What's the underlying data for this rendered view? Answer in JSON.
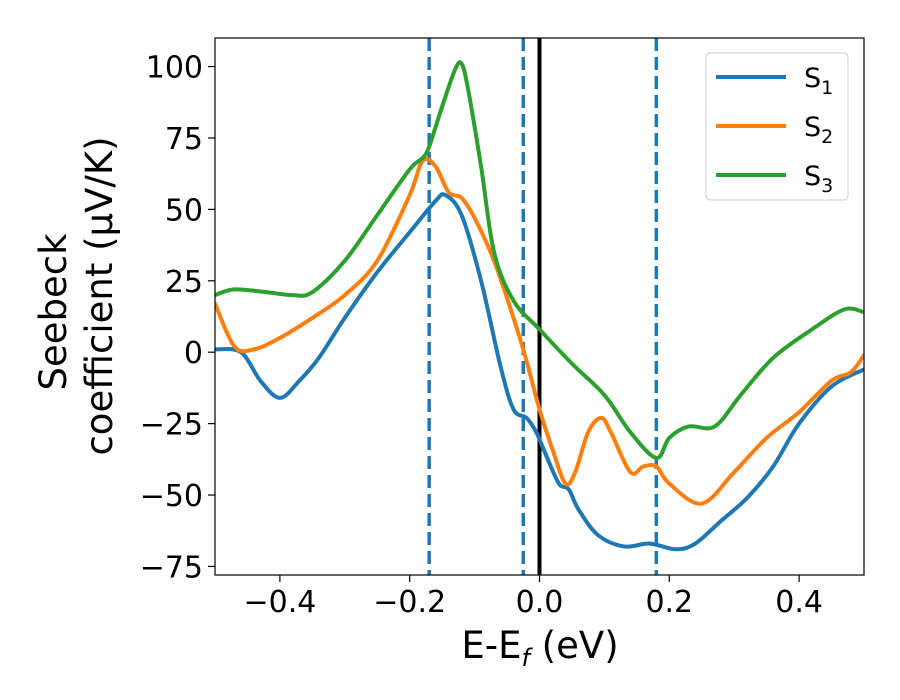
{
  "chart_data": {
    "type": "line",
    "title": "",
    "xlabel": "E-E_f (eV)",
    "ylabel": "Seebeck coefficient (μV/K)",
    "xlabel_parts": {
      "main": "E-E",
      "sub": "f",
      "tail": " (eV)"
    },
    "ylabel_lines": [
      "Seebeck",
      "coefficient  (μV/K)"
    ],
    "xlim": [
      -0.5,
      0.5
    ],
    "ylim": [
      -78,
      110
    ],
    "xticks": [
      -0.4,
      -0.2,
      0.0,
      0.2,
      0.4
    ],
    "xtick_labels": [
      "−0.4",
      "−0.2",
      "0.0",
      "0.2",
      "0.4"
    ],
    "yticks": [
      -75,
      -50,
      -25,
      0,
      25,
      50,
      75,
      100
    ],
    "ytick_labels": [
      "−75",
      "−50",
      "−25",
      "0",
      "25",
      "50",
      "75",
      "100"
    ],
    "grid": false,
    "legend_position": "top-right",
    "vlines": [
      {
        "x": -0.17,
        "style": "dashed",
        "color": "#1f77b4"
      },
      {
        "x": -0.025,
        "style": "dashed",
        "color": "#1f77b4"
      },
      {
        "x": 0.0,
        "style": "solid",
        "color": "#000000"
      },
      {
        "x": 0.18,
        "style": "dashed",
        "color": "#1f77b4"
      }
    ],
    "series": [
      {
        "name": "S1",
        "label_main": "S",
        "label_sub": "1",
        "color": "#1f77b4",
        "points": [
          [
            -0.5,
            1
          ],
          [
            -0.46,
            0
          ],
          [
            -0.43,
            -10
          ],
          [
            -0.4,
            -16
          ],
          [
            -0.37,
            -10
          ],
          [
            -0.34,
            -2
          ],
          [
            -0.3,
            12
          ],
          [
            -0.25,
            28
          ],
          [
            -0.2,
            42
          ],
          [
            -0.16,
            53
          ],
          [
            -0.145,
            55
          ],
          [
            -0.12,
            48
          ],
          [
            -0.09,
            25
          ],
          [
            -0.06,
            -5
          ],
          [
            -0.04,
            -20
          ],
          [
            -0.02,
            -23
          ],
          [
            -0.005,
            -28
          ],
          [
            0.01,
            -36
          ],
          [
            0.03,
            -46
          ],
          [
            0.045,
            -48
          ],
          [
            0.06,
            -55
          ],
          [
            0.09,
            -64
          ],
          [
            0.13,
            -68
          ],
          [
            0.17,
            -67
          ],
          [
            0.21,
            -69
          ],
          [
            0.24,
            -67
          ],
          [
            0.28,
            -59
          ],
          [
            0.32,
            -51
          ],
          [
            0.36,
            -40
          ],
          [
            0.4,
            -25
          ],
          [
            0.45,
            -12
          ],
          [
            0.5,
            -6
          ]
        ]
      },
      {
        "name": "S2",
        "label_main": "S",
        "label_sub": "2",
        "color": "#ff7f0e",
        "points": [
          [
            -0.5,
            17
          ],
          [
            -0.47,
            2
          ],
          [
            -0.44,
            1
          ],
          [
            -0.4,
            5
          ],
          [
            -0.35,
            12
          ],
          [
            -0.3,
            20
          ],
          [
            -0.25,
            32
          ],
          [
            -0.2,
            55
          ],
          [
            -0.18,
            67
          ],
          [
            -0.16,
            65
          ],
          [
            -0.14,
            56
          ],
          [
            -0.12,
            54
          ],
          [
            -0.1,
            47
          ],
          [
            -0.07,
            32
          ],
          [
            -0.04,
            12
          ],
          [
            -0.02,
            -3
          ],
          [
            0.0,
            -20
          ],
          [
            0.02,
            -34
          ],
          [
            0.04,
            -46
          ],
          [
            0.055,
            -42
          ],
          [
            0.075,
            -28
          ],
          [
            0.095,
            -23
          ],
          [
            0.11,
            -28
          ],
          [
            0.14,
            -42
          ],
          [
            0.16,
            -40
          ],
          [
            0.18,
            -40
          ],
          [
            0.2,
            -46
          ],
          [
            0.25,
            -53
          ],
          [
            0.3,
            -42
          ],
          [
            0.35,
            -30
          ],
          [
            0.4,
            -21
          ],
          [
            0.45,
            -10
          ],
          [
            0.48,
            -7
          ],
          [
            0.5,
            -1
          ]
        ]
      },
      {
        "name": "S3",
        "label_main": "S",
        "label_sub": "3",
        "color": "#2ca02c",
        "points": [
          [
            -0.5,
            20
          ],
          [
            -0.47,
            22
          ],
          [
            -0.42,
            21
          ],
          [
            -0.38,
            20
          ],
          [
            -0.35,
            21
          ],
          [
            -0.3,
            32
          ],
          [
            -0.25,
            48
          ],
          [
            -0.2,
            64
          ],
          [
            -0.18,
            68
          ],
          [
            -0.17,
            72
          ],
          [
            -0.15,
            86
          ],
          [
            -0.13,
            99
          ],
          [
            -0.12,
            101
          ],
          [
            -0.11,
            92
          ],
          [
            -0.09,
            65
          ],
          [
            -0.07,
            35
          ],
          [
            -0.04,
            18
          ],
          [
            0.0,
            8
          ],
          [
            0.05,
            -4
          ],
          [
            0.1,
            -15
          ],
          [
            0.14,
            -28
          ],
          [
            0.18,
            -37
          ],
          [
            0.2,
            -30
          ],
          [
            0.23,
            -26
          ],
          [
            0.27,
            -26
          ],
          [
            0.31,
            -15
          ],
          [
            0.36,
            -2
          ],
          [
            0.42,
            8
          ],
          [
            0.47,
            15
          ],
          [
            0.5,
            14
          ]
        ]
      }
    ]
  }
}
